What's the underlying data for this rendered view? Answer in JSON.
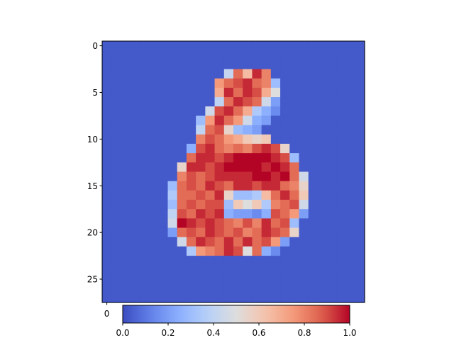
{
  "chart_data": {
    "type": "heatmap",
    "title": "",
    "xlabel": "",
    "ylabel": "",
    "colormap": "coolwarm",
    "rows": 28,
    "cols": 28,
    "xlim": [
      -0.5,
      27.5
    ],
    "ylim": [
      27.5,
      -0.5
    ],
    "y_ticks": [
      0,
      5,
      10,
      15,
      20,
      25
    ],
    "y_tick_labels": [
      "0",
      "5",
      "10",
      "15",
      "20",
      "25"
    ],
    "x_ticks_visible": [
      0
    ],
    "x_tick_labels_visible": [
      "0"
    ],
    "background_value": 0.03,
    "cells": [
      [
        3,
        13,
        0.42
      ],
      [
        3,
        14,
        0.85
      ],
      [
        3,
        15,
        0.65
      ],
      [
        3,
        16,
        0.95
      ],
      [
        3,
        17,
        0.8
      ],
      [
        4,
        12,
        0.75
      ],
      [
        4,
        13,
        0.85
      ],
      [
        4,
        14,
        0.9
      ],
      [
        4,
        15,
        0.95
      ],
      [
        4,
        16,
        0.85
      ],
      [
        4,
        17,
        0.8
      ],
      [
        4,
        18,
        0.3
      ],
      [
        5,
        12,
        0.7
      ],
      [
        5,
        13,
        0.95
      ],
      [
        5,
        14,
        0.85
      ],
      [
        5,
        15,
        0.95
      ],
      [
        5,
        16,
        0.9
      ],
      [
        5,
        17,
        0.7
      ],
      [
        5,
        18,
        0.5
      ],
      [
        6,
        12,
        0.4
      ],
      [
        6,
        13,
        0.85
      ],
      [
        6,
        14,
        0.95
      ],
      [
        6,
        15,
        0.9
      ],
      [
        6,
        16,
        0.85
      ],
      [
        6,
        17,
        0.45
      ],
      [
        6,
        18,
        0.2
      ],
      [
        7,
        11,
        0.45
      ],
      [
        7,
        12,
        0.9
      ],
      [
        7,
        13,
        0.95
      ],
      [
        7,
        14,
        0.85
      ],
      [
        7,
        15,
        0.7
      ],
      [
        7,
        16,
        0.35
      ],
      [
        7,
        17,
        0.25
      ],
      [
        7,
        18,
        0.15
      ],
      [
        8,
        10,
        0.3
      ],
      [
        8,
        11,
        0.75
      ],
      [
        8,
        12,
        0.95
      ],
      [
        8,
        13,
        0.85
      ],
      [
        8,
        14,
        0.75
      ],
      [
        8,
        15,
        0.45
      ],
      [
        8,
        16,
        0.25
      ],
      [
        8,
        17,
        0.2
      ],
      [
        9,
        10,
        0.4
      ],
      [
        9,
        11,
        0.85
      ],
      [
        9,
        12,
        0.9
      ],
      [
        9,
        13,
        0.55
      ],
      [
        9,
        14,
        0.3
      ],
      [
        9,
        15,
        0.25
      ],
      [
        9,
        16,
        0.2
      ],
      [
        10,
        10,
        0.8
      ],
      [
        10,
        11,
        0.9
      ],
      [
        10,
        12,
        0.85
      ],
      [
        10,
        13,
        0.75
      ],
      [
        10,
        14,
        0.7
      ],
      [
        10,
        15,
        0.6
      ],
      [
        10,
        16,
        0.55
      ],
      [
        10,
        17,
        0.6
      ],
      [
        11,
        9,
        0.25
      ],
      [
        11,
        10,
        0.9
      ],
      [
        11,
        11,
        0.95
      ],
      [
        11,
        12,
        0.85
      ],
      [
        11,
        13,
        0.8
      ],
      [
        11,
        14,
        0.85
      ],
      [
        11,
        15,
        0.8
      ],
      [
        11,
        16,
        0.9
      ],
      [
        11,
        17,
        0.95
      ],
      [
        11,
        18,
        0.9
      ],
      [
        11,
        19,
        0.55
      ],
      [
        12,
        9,
        0.85
      ],
      [
        12,
        10,
        0.95
      ],
      [
        12,
        11,
        0.95
      ],
      [
        12,
        12,
        0.9
      ],
      [
        12,
        13,
        0.95
      ],
      [
        12,
        14,
        1.0
      ],
      [
        12,
        15,
        1.0
      ],
      [
        12,
        16,
        1.0
      ],
      [
        12,
        17,
        1.0
      ],
      [
        12,
        18,
        0.95
      ],
      [
        12,
        19,
        0.9
      ],
      [
        12,
        20,
        0.3
      ],
      [
        13,
        8,
        0.55
      ],
      [
        13,
        9,
        0.95
      ],
      [
        13,
        10,
        0.95
      ],
      [
        13,
        11,
        0.9
      ],
      [
        13,
        12,
        0.95
      ],
      [
        13,
        13,
        1.0
      ],
      [
        13,
        14,
        1.0
      ],
      [
        13,
        15,
        1.0
      ],
      [
        13,
        16,
        1.0
      ],
      [
        13,
        17,
        0.95
      ],
      [
        13,
        18,
        1.0
      ],
      [
        13,
        19,
        0.95
      ],
      [
        13,
        20,
        0.85
      ],
      [
        14,
        8,
        0.8
      ],
      [
        14,
        9,
        0.9
      ],
      [
        14,
        10,
        0.85
      ],
      [
        14,
        11,
        0.9
      ],
      [
        14,
        12,
        0.95
      ],
      [
        14,
        13,
        0.95
      ],
      [
        14,
        14,
        0.95
      ],
      [
        14,
        15,
        0.95
      ],
      [
        14,
        16,
        1.0
      ],
      [
        14,
        17,
        1.0
      ],
      [
        14,
        18,
        0.95
      ],
      [
        14,
        19,
        1.0
      ],
      [
        14,
        20,
        0.85
      ],
      [
        14,
        21,
        0.45
      ],
      [
        15,
        7,
        0.3
      ],
      [
        15,
        8,
        0.85
      ],
      [
        15,
        9,
        0.9
      ],
      [
        15,
        10,
        0.85
      ],
      [
        15,
        11,
        0.95
      ],
      [
        15,
        12,
        0.9
      ],
      [
        15,
        13,
        0.85
      ],
      [
        15,
        14,
        0.95
      ],
      [
        15,
        15,
        0.95
      ],
      [
        15,
        16,
        0.9
      ],
      [
        15,
        17,
        0.95
      ],
      [
        15,
        18,
        0.95
      ],
      [
        15,
        19,
        0.85
      ],
      [
        15,
        20,
        0.8
      ],
      [
        15,
        21,
        0.55
      ],
      [
        16,
        7,
        0.35
      ],
      [
        16,
        8,
        0.85
      ],
      [
        16,
        9,
        0.85
      ],
      [
        16,
        10,
        0.9
      ],
      [
        16,
        11,
        0.85
      ],
      [
        16,
        12,
        0.95
      ],
      [
        16,
        13,
        0.55
      ],
      [
        16,
        14,
        0.3
      ],
      [
        16,
        15,
        0.3
      ],
      [
        16,
        16,
        0.35
      ],
      [
        16,
        17,
        0.65
      ],
      [
        16,
        18,
        0.85
      ],
      [
        16,
        19,
        0.95
      ],
      [
        16,
        20,
        0.85
      ],
      [
        16,
        21,
        0.6
      ],
      [
        17,
        7,
        0.3
      ],
      [
        17,
        8,
        0.85
      ],
      [
        17,
        9,
        0.9
      ],
      [
        17,
        10,
        0.85
      ],
      [
        17,
        11,
        0.9
      ],
      [
        17,
        12,
        0.9
      ],
      [
        17,
        13,
        0.3
      ],
      [
        17,
        14,
        0.6
      ],
      [
        17,
        15,
        0.5
      ],
      [
        17,
        16,
        0.6
      ],
      [
        17,
        17,
        0.35
      ],
      [
        17,
        18,
        0.8
      ],
      [
        17,
        19,
        0.85
      ],
      [
        17,
        20,
        0.9
      ],
      [
        17,
        21,
        0.45
      ],
      [
        18,
        7,
        0.4
      ],
      [
        18,
        8,
        0.9
      ],
      [
        18,
        9,
        0.85
      ],
      [
        18,
        10,
        0.95
      ],
      [
        18,
        11,
        0.9
      ],
      [
        18,
        12,
        0.95
      ],
      [
        18,
        13,
        0.25
      ],
      [
        18,
        14,
        0.2
      ],
      [
        18,
        15,
        0.2
      ],
      [
        18,
        16,
        0.15
      ],
      [
        18,
        17,
        0.25
      ],
      [
        18,
        18,
        0.9
      ],
      [
        18,
        19,
        0.85
      ],
      [
        18,
        20,
        0.75
      ],
      [
        18,
        21,
        0.2
      ],
      [
        19,
        7,
        0.45
      ],
      [
        19,
        8,
        1.0
      ],
      [
        19,
        9,
        0.95
      ],
      [
        19,
        10,
        0.9
      ],
      [
        19,
        11,
        0.95
      ],
      [
        19,
        12,
        0.9
      ],
      [
        19,
        13,
        0.85
      ],
      [
        19,
        14,
        0.8
      ],
      [
        19,
        15,
        0.9
      ],
      [
        19,
        16,
        0.8
      ],
      [
        19,
        17,
        0.95
      ],
      [
        19,
        18,
        0.85
      ],
      [
        19,
        19,
        0.9
      ],
      [
        19,
        20,
        0.3
      ],
      [
        20,
        7,
        0.2
      ],
      [
        20,
        8,
        0.85
      ],
      [
        20,
        9,
        0.9
      ],
      [
        20,
        10,
        0.85
      ],
      [
        20,
        11,
        0.95
      ],
      [
        20,
        12,
        0.9
      ],
      [
        20,
        13,
        0.85
      ],
      [
        20,
        14,
        0.9
      ],
      [
        20,
        15,
        0.8
      ],
      [
        20,
        16,
        0.85
      ],
      [
        20,
        17,
        0.95
      ],
      [
        20,
        18,
        0.9
      ],
      [
        20,
        19,
        0.85
      ],
      [
        20,
        20,
        0.55
      ],
      [
        21,
        8,
        0.45
      ],
      [
        21,
        9,
        0.85
      ],
      [
        21,
        10,
        0.95
      ],
      [
        21,
        11,
        0.9
      ],
      [
        21,
        12,
        0.85
      ],
      [
        21,
        13,
        0.95
      ],
      [
        21,
        14,
        0.85
      ],
      [
        21,
        15,
        0.95
      ],
      [
        21,
        16,
        0.85
      ],
      [
        21,
        17,
        0.9
      ],
      [
        21,
        18,
        0.75
      ],
      [
        21,
        19,
        0.2
      ],
      [
        22,
        9,
        0.35
      ],
      [
        22,
        10,
        0.75
      ],
      [
        22,
        11,
        0.8
      ],
      [
        22,
        12,
        0.85
      ],
      [
        22,
        13,
        0.95
      ],
      [
        22,
        14,
        0.9
      ],
      [
        22,
        15,
        0.5
      ],
      [
        22,
        16,
        0.85
      ],
      [
        22,
        17,
        0.25
      ],
      [
        22,
        18,
        0.15
      ]
    ],
    "colorbar": {
      "range": [
        0.0,
        1.0
      ],
      "ticks": [
        0.0,
        0.2,
        0.4,
        0.6,
        0.8,
        1.0
      ],
      "tick_labels": [
        "0.0",
        "0.2",
        "0.4",
        "0.6",
        "0.8",
        "1.0"
      ],
      "orientation": "horizontal",
      "placement": "bottom"
    }
  }
}
